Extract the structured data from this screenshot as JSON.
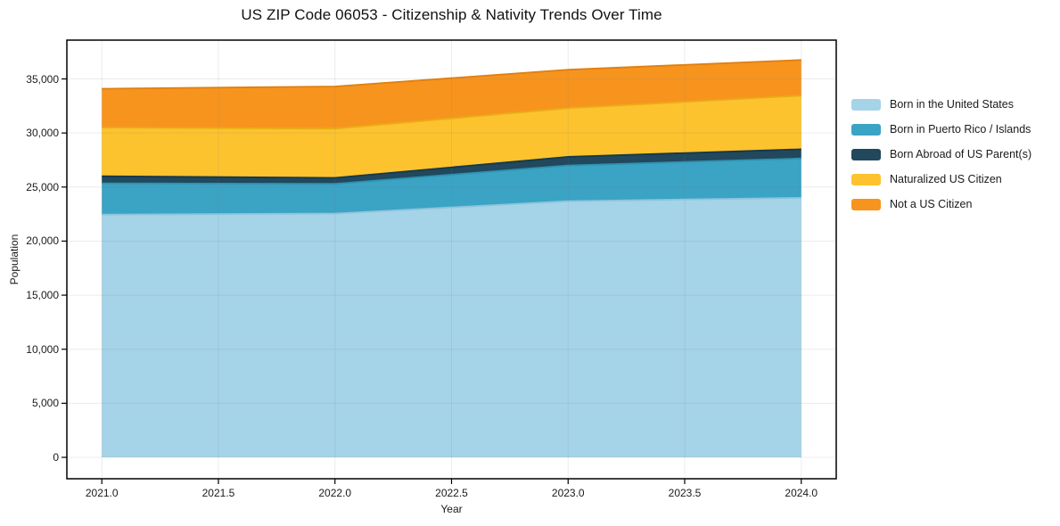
{
  "page": {
    "background": "#ffffff"
  },
  "chart_data": {
    "type": "area",
    "stacked": true,
    "title": "US ZIP Code 06053 - Citizenship & Nativity Trends Over Time",
    "xlabel": "Year",
    "ylabel": "Population",
    "x": [
      2021,
      2022,
      2023,
      2024
    ],
    "series": [
      {
        "name": "Born in the United States",
        "color": "#a5d3e8",
        "edge_color": "#8cc3db",
        "values": [
          22450,
          22550,
          23700,
          24000
        ]
      },
      {
        "name": "Born in Puerto Rico / Islands",
        "color": "#3ba3c4",
        "edge_color": "#2e91b0",
        "values": [
          2900,
          2750,
          3300,
          3650
        ]
      },
      {
        "name": "Born Abroad of US Parent(s)",
        "color": "#21485c",
        "edge_color": "#17384a",
        "values": [
          650,
          550,
          800,
          850
        ]
      },
      {
        "name": "Naturalized US Citizen",
        "color": "#fcc32f",
        "edge_color": "#e9ad17",
        "values": [
          4500,
          4550,
          4500,
          4950
        ]
      },
      {
        "name": "Not a US Citizen",
        "color": "#f7941e",
        "edge_color": "#e07f10",
        "values": [
          3600,
          3900,
          3550,
          3300
        ]
      }
    ],
    "stack_totals": [
      34100,
      34300,
      35850,
      36750
    ],
    "x_ticks": [
      {
        "value": 2021.0,
        "label": "2021.0"
      },
      {
        "value": 2021.5,
        "label": "2021.5"
      },
      {
        "value": 2022.0,
        "label": "2022.0"
      },
      {
        "value": 2022.5,
        "label": "2022.5"
      },
      {
        "value": 2023.0,
        "label": "2023.0"
      },
      {
        "value": 2023.5,
        "label": "2023.5"
      },
      {
        "value": 2024.0,
        "label": "2024.0"
      }
    ],
    "y_ticks": [
      {
        "value": 0,
        "label": "0"
      },
      {
        "value": 5000,
        "label": "5,000"
      },
      {
        "value": 10000,
        "label": "10,000"
      },
      {
        "value": 15000,
        "label": "15,000"
      },
      {
        "value": 20000,
        "label": "20,000"
      },
      {
        "value": 25000,
        "label": "25,000"
      },
      {
        "value": 30000,
        "label": "30,000"
      },
      {
        "value": 35000,
        "label": "35,000"
      }
    ],
    "xlim": [
      2020.85,
      2024.15
    ],
    "ylim": [
      -1980,
      38590
    ],
    "grid": true,
    "grid_color": "#e7e7e7",
    "spine_color": "#000000",
    "tick_color": "#000000",
    "text_color": "#1a1a1a",
    "legend_position": "right"
  }
}
